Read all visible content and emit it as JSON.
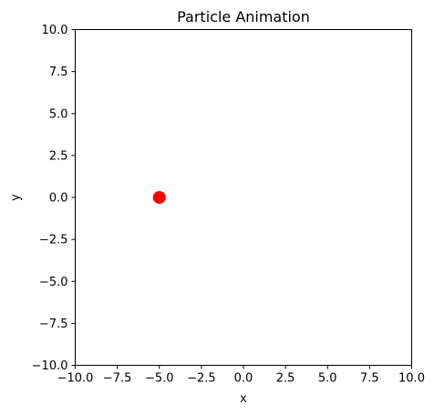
{
  "chart_data": {
    "type": "scatter",
    "title": "Particle Animation",
    "xlabel": "x",
    "ylabel": "y",
    "xlim": [
      -10.0,
      10.0
    ],
    "ylim": [
      -10.0,
      10.0
    ],
    "xticks": [
      -10.0,
      -7.5,
      -5.0,
      -2.5,
      0.0,
      2.5,
      5.0,
      7.5,
      10.0
    ],
    "yticks": [
      -10.0,
      -7.5,
      -5.0,
      -2.5,
      0.0,
      2.5,
      5.0,
      7.5,
      10.0
    ],
    "xtick_labels": [
      "−10.0",
      "−7.5",
      "−5.0",
      "−2.5",
      "0.0",
      "2.5",
      "5.0",
      "7.5",
      "10.0"
    ],
    "ytick_labels": [
      "−10.0",
      "−7.5",
      "−5.0",
      "−2.5",
      "0.0",
      "2.5",
      "5.0",
      "7.5",
      "10.0"
    ],
    "points": [
      {
        "x": -5.0,
        "y": 0.0
      }
    ],
    "marker_color": "#ff0000",
    "grid": false,
    "legend": "none"
  }
}
